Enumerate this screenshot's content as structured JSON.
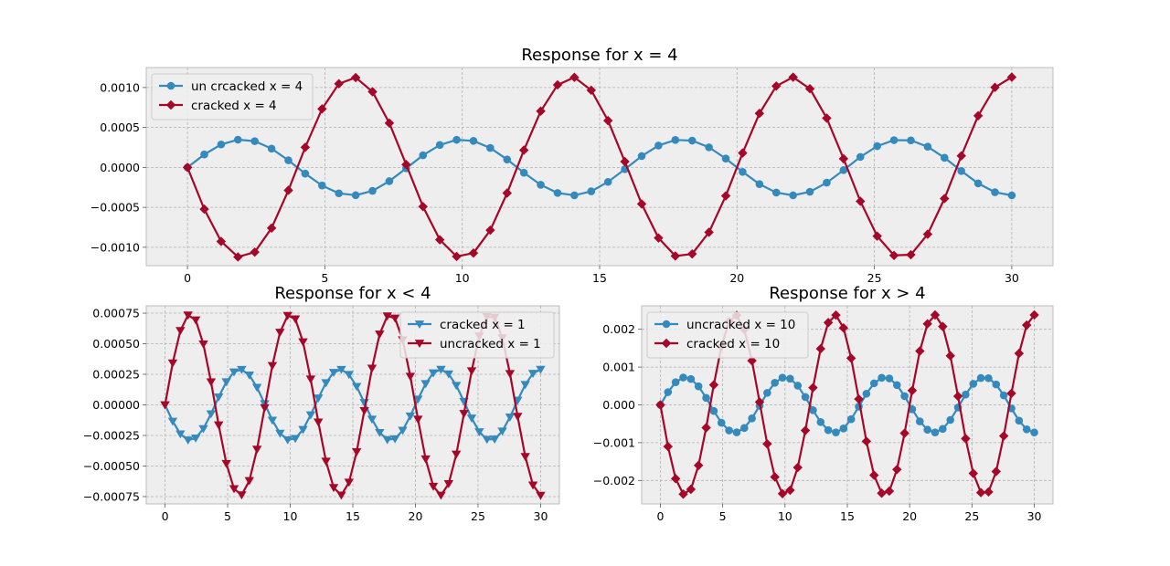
{
  "chart_data": [
    {
      "type": "line",
      "title": "Response for x = 4",
      "xlim": [
        -1.5,
        31.5
      ],
      "ylim": [
        -0.00123,
        0.00125
      ],
      "xticks": [
        0,
        5,
        10,
        15,
        20,
        25,
        30
      ],
      "yticks": [
        -0.001,
        -0.0005,
        0.0,
        0.0005,
        0.001
      ],
      "ytick_labels": [
        "−0.0010",
        "−0.0005",
        "0.0000",
        "0.0005",
        "0.0010"
      ],
      "grid": true,
      "legend_position": "upper-left",
      "series": [
        {
          "name": "un crcacked x = 4",
          "color": "#348ABD",
          "marker": "circle",
          "period": 8,
          "amplitude": 0.00035,
          "sign": 1,
          "x_start": 0,
          "x_end": 30,
          "points": 50
        },
        {
          "name": "cracked x = 4",
          "color": "#A60628",
          "marker": "diamond",
          "period": 8,
          "amplitude": 0.00113,
          "sign": -1,
          "x_start": 0,
          "x_end": 30,
          "points": 50
        }
      ]
    },
    {
      "type": "line",
      "title": "Response for x < 4",
      "xlim": [
        -1.5,
        31.5
      ],
      "ylim": [
        -0.00081,
        0.00081
      ],
      "xticks": [
        0,
        5,
        10,
        15,
        20,
        25,
        30
      ],
      "yticks": [
        -0.00075,
        -0.0005,
        -0.00025,
        0.0,
        0.00025,
        0.0005,
        0.00075
      ],
      "ytick_labels": [
        "−0.00075",
        "−0.00050",
        "−0.00025",
        "0.00000",
        "0.00025",
        "0.00050",
        "0.00075"
      ],
      "grid": true,
      "legend_position": "upper-right",
      "series": [
        {
          "name": "cracked x = 1",
          "color": "#348ABD",
          "marker": "triangle-down",
          "period": 8,
          "amplitude": 0.00029,
          "sign": -1,
          "x_start": 0,
          "x_end": 30,
          "points": 50
        },
        {
          "name": "uncracked x = 1",
          "color": "#A60628",
          "marker": "triangle-down",
          "period": 8,
          "amplitude": 0.00074,
          "sign": 1,
          "x_start": 0,
          "x_end": 30,
          "points": 50
        }
      ]
    },
    {
      "type": "line",
      "title": "Response for x > 4",
      "xlim": [
        -1.5,
        31.5
      ],
      "ylim": [
        -0.00262,
        0.00262
      ],
      "xticks": [
        0,
        5,
        10,
        15,
        20,
        25,
        30
      ],
      "yticks": [
        -0.002,
        -0.001,
        0.0,
        0.001,
        0.002
      ],
      "ytick_labels": [
        "−0.002",
        "−0.001",
        "0.000",
        "0.001",
        "0.002"
      ],
      "grid": true,
      "legend_position": "upper-left",
      "series": [
        {
          "name": "uncracked x = 10",
          "color": "#348ABD",
          "marker": "circle",
          "period": 8,
          "amplitude": 0.00073,
          "sign": 1,
          "x_start": 0,
          "x_end": 30,
          "points": 50
        },
        {
          "name": "cracked x = 10",
          "color": "#A60628",
          "marker": "diamond",
          "period": 8,
          "amplitude": 0.00238,
          "sign": -1,
          "x_start": 0,
          "x_end": 30,
          "points": 50
        }
      ]
    }
  ]
}
